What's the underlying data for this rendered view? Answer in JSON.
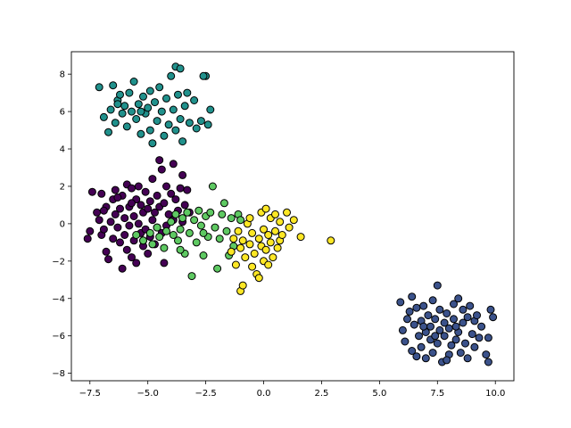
{
  "chart_data": {
    "type": "scatter",
    "title": "",
    "xlabel": "",
    "ylabel": "",
    "xlim": [
      -8.3,
      10.8
    ],
    "ylim": [
      -8.4,
      9.2
    ],
    "xticks": [
      -7.5,
      -5.0,
      -2.5,
      0.0,
      2.5,
      5.0,
      7.5,
      10.0
    ],
    "xtick_labels": [
      "−7.5",
      "−5.0",
      "−2.5",
      "0.0",
      "2.5",
      "5.0",
      "7.5",
      "10.0"
    ],
    "yticks": [
      -8,
      -6,
      -4,
      -2,
      0,
      2,
      4,
      6,
      8
    ],
    "ytick_labels": [
      "−8",
      "−6",
      "−4",
      "−2",
      "0",
      "2",
      "4",
      "6",
      "8"
    ],
    "grid": false,
    "marker_edge_color": "#000000",
    "series": [
      {
        "color": "#440154",
        "points": [
          [
            -7.6,
            -0.8
          ],
          [
            -7.5,
            -0.4
          ],
          [
            -7.4,
            1.7
          ],
          [
            -7.2,
            0.6
          ],
          [
            -7.1,
            0.2
          ],
          [
            -7.0,
            -0.6
          ],
          [
            -7.0,
            1.6
          ],
          [
            -6.9,
            -0.3
          ],
          [
            -6.8,
            -1.5
          ],
          [
            -6.8,
            0.9
          ],
          [
            -6.7,
            -1.9
          ],
          [
            -6.6,
            0.1
          ],
          [
            -6.5,
            1.3
          ],
          [
            -6.5,
            -0.8
          ],
          [
            -6.4,
            0.5
          ],
          [
            -6.4,
            1.8
          ],
          [
            -6.3,
            -0.2
          ],
          [
            -6.2,
            -1.0
          ],
          [
            -6.2,
            0.8
          ],
          [
            -6.1,
            -2.4
          ],
          [
            -6.1,
            1.5
          ],
          [
            -6.0,
            0.3
          ],
          [
            -6.0,
            -0.6
          ],
          [
            -5.9,
            2.1
          ],
          [
            -5.9,
            -1.4
          ],
          [
            -5.8,
            0.9
          ],
          [
            -5.8,
            -0.1
          ],
          [
            -5.7,
            1.9
          ],
          [
            -5.7,
            -1.8
          ],
          [
            -5.6,
            0.4
          ],
          [
            -5.6,
            -0.9
          ],
          [
            -5.5,
            1.3
          ],
          [
            -5.5,
            -2.1
          ],
          [
            -5.4,
            0.0
          ],
          [
            -5.4,
            2.0
          ],
          [
            -5.3,
            -0.5
          ],
          [
            -5.3,
            1.0
          ],
          [
            -5.2,
            -1.2
          ],
          [
            -5.2,
            0.6
          ],
          [
            -5.1,
            1.7
          ],
          [
            -5.1,
            -0.3
          ],
          [
            -5.0,
            0.8
          ],
          [
            -5.0,
            -1.6
          ],
          [
            -4.9,
            1.2
          ],
          [
            -4.9,
            -0.7
          ],
          [
            -4.8,
            0.2
          ],
          [
            -4.8,
            2.4
          ],
          [
            -4.7,
            -1.1
          ],
          [
            -4.7,
            0.6
          ],
          [
            -4.6,
            1.5
          ],
          [
            -4.6,
            -0.2
          ],
          [
            -4.5,
            3.4
          ],
          [
            -4.5,
            0.9
          ],
          [
            -4.4,
            2.9
          ],
          [
            -4.4,
            -0.5
          ],
          [
            -4.3,
            1.1
          ],
          [
            -4.2,
            2.0
          ],
          [
            -4.2,
            -0.1
          ],
          [
            -4.1,
            0.5
          ],
          [
            -4.0,
            1.6
          ],
          [
            -3.9,
            0.2
          ],
          [
            -3.9,
            3.2
          ],
          [
            -3.8,
            1.3
          ],
          [
            -3.7,
            0.7
          ],
          [
            -3.6,
            1.9
          ],
          [
            -3.5,
            0.1
          ],
          [
            -3.5,
            2.6
          ],
          [
            -3.4,
            1.0
          ],
          [
            -3.3,
            1.8
          ],
          [
            -3.2,
            0.6
          ],
          [
            -4.3,
            -2.1
          ],
          [
            -5.7,
            1.1
          ],
          [
            -6.3,
            1.4
          ],
          [
            -5.2,
            -0.9
          ],
          [
            -6.9,
            0.7
          ]
        ]
      },
      {
        "color": "#3b528b",
        "points": [
          [
            5.9,
            -4.2
          ],
          [
            6.0,
            -5.7
          ],
          [
            6.1,
            -6.3
          ],
          [
            6.2,
            -5.1
          ],
          [
            6.3,
            -4.7
          ],
          [
            6.4,
            -6.8
          ],
          [
            6.4,
            -3.9
          ],
          [
            6.5,
            -5.4
          ],
          [
            6.6,
            -7.1
          ],
          [
            6.6,
            -4.5
          ],
          [
            6.7,
            -6.0
          ],
          [
            6.8,
            -5.2
          ],
          [
            6.8,
            -6.6
          ],
          [
            6.9,
            -4.4
          ],
          [
            7.0,
            -5.8
          ],
          [
            7.0,
            -7.2
          ],
          [
            7.1,
            -4.9
          ],
          [
            7.2,
            -6.2
          ],
          [
            7.2,
            -5.5
          ],
          [
            7.3,
            -4.1
          ],
          [
            7.3,
            -6.9
          ],
          [
            7.4,
            -5.1
          ],
          [
            7.5,
            -3.3
          ],
          [
            7.5,
            -6.4
          ],
          [
            7.6,
            -5.7
          ],
          [
            7.6,
            -4.6
          ],
          [
            7.7,
            -7.4
          ],
          [
            7.8,
            -5.3
          ],
          [
            7.8,
            -6.0
          ],
          [
            7.9,
            -4.8
          ],
          [
            8.0,
            -7.0
          ],
          [
            8.0,
            -5.6
          ],
          [
            8.1,
            -6.5
          ],
          [
            8.2,
            -4.3
          ],
          [
            8.2,
            -5.1
          ],
          [
            8.3,
            -6.2
          ],
          [
            8.4,
            -5.8
          ],
          [
            8.4,
            -4.0
          ],
          [
            8.5,
            -6.9
          ],
          [
            8.6,
            -5.3
          ],
          [
            8.6,
            -4.6
          ],
          [
            8.7,
            -6.4
          ],
          [
            8.8,
            -5.0
          ],
          [
            8.8,
            -7.2
          ],
          [
            8.9,
            -4.4
          ],
          [
            9.0,
            -5.9
          ],
          [
            9.1,
            -6.6
          ],
          [
            9.1,
            -5.2
          ],
          [
            9.2,
            -4.9
          ],
          [
            9.3,
            -6.1
          ],
          [
            9.4,
            -5.5
          ],
          [
            9.6,
            -7.0
          ],
          [
            9.7,
            -6.1
          ],
          [
            9.8,
            -4.6
          ],
          [
            9.9,
            -5.0
          ],
          [
            9.7,
            -7.4
          ],
          [
            7.4,
            -6.0
          ],
          [
            7.9,
            -7.3
          ],
          [
            6.9,
            -5.5
          ],
          [
            8.3,
            -5.5
          ]
        ]
      },
      {
        "color": "#21918c",
        "points": [
          [
            -7.1,
            7.3
          ],
          [
            -6.9,
            5.7
          ],
          [
            -6.7,
            4.9
          ],
          [
            -6.6,
            6.1
          ],
          [
            -6.5,
            7.4
          ],
          [
            -6.4,
            5.4
          ],
          [
            -6.3,
            6.6
          ],
          [
            -6.2,
            6.9
          ],
          [
            -6.1,
            5.9
          ],
          [
            -6.0,
            6.3
          ],
          [
            -5.9,
            5.2
          ],
          [
            -5.8,
            7.0
          ],
          [
            -5.7,
            6.0
          ],
          [
            -5.6,
            7.6
          ],
          [
            -5.5,
            5.6
          ],
          [
            -5.4,
            6.4
          ],
          [
            -5.3,
            4.8
          ],
          [
            -5.2,
            6.8
          ],
          [
            -5.1,
            5.9
          ],
          [
            -5.0,
            6.2
          ],
          [
            -4.9,
            5.0
          ],
          [
            -4.9,
            7.1
          ],
          [
            -4.8,
            4.3
          ],
          [
            -4.7,
            6.5
          ],
          [
            -4.6,
            5.5
          ],
          [
            -4.5,
            7.3
          ],
          [
            -4.4,
            6.0
          ],
          [
            -4.3,
            4.7
          ],
          [
            -4.2,
            6.7
          ],
          [
            -4.1,
            5.3
          ],
          [
            -4.0,
            7.9
          ],
          [
            -3.9,
            6.1
          ],
          [
            -3.8,
            8.4
          ],
          [
            -3.8,
            5.0
          ],
          [
            -3.7,
            6.9
          ],
          [
            -3.6,
            5.6
          ],
          [
            -3.5,
            4.4
          ],
          [
            -3.4,
            6.3
          ],
          [
            -3.3,
            7.0
          ],
          [
            -3.2,
            5.4
          ],
          [
            -3.0,
            6.6
          ],
          [
            -2.9,
            5.1
          ],
          [
            -2.7,
            5.5
          ],
          [
            -2.5,
            7.9
          ],
          [
            -2.4,
            5.3
          ],
          [
            -2.3,
            6.1
          ],
          [
            -3.6,
            8.3
          ],
          [
            -2.6,
            7.9
          ],
          [
            -5.3,
            6.0
          ],
          [
            -6.3,
            6.4
          ]
        ]
      },
      {
        "color": "#5ec962",
        "points": [
          [
            -5.5,
            -0.6
          ],
          [
            -5.2,
            -0.9
          ],
          [
            -4.9,
            -0.5
          ],
          [
            -4.8,
            -1.1
          ],
          [
            -4.6,
            -0.2
          ],
          [
            -4.5,
            -0.7
          ],
          [
            -4.3,
            -1.3
          ],
          [
            -4.2,
            -0.4
          ],
          [
            -4.0,
            0.1
          ],
          [
            -3.9,
            -0.6
          ],
          [
            -3.8,
            0.5
          ],
          [
            -3.7,
            -0.9
          ],
          [
            -3.6,
            -0.3
          ],
          [
            -3.5,
            0.3
          ],
          [
            -3.4,
            -1.6
          ],
          [
            -3.3,
            0.6
          ],
          [
            -3.2,
            -0.5
          ],
          [
            -3.1,
            -2.8
          ],
          [
            -3.0,
            0.2
          ],
          [
            -2.9,
            -1.0
          ],
          [
            -2.8,
            0.7
          ],
          [
            -2.7,
            -0.1
          ],
          [
            -2.6,
            -1.7
          ],
          [
            -2.5,
            0.4
          ],
          [
            -2.4,
            -0.7
          ],
          [
            -2.3,
            0.6
          ],
          [
            -2.2,
            2.0
          ],
          [
            -2.1,
            -0.2
          ],
          [
            -2.0,
            -2.4
          ],
          [
            -1.9,
            -0.8
          ],
          [
            -1.8,
            0.5
          ],
          [
            -1.7,
            1.1
          ],
          [
            -1.6,
            -0.4
          ],
          [
            -1.5,
            -1.7
          ],
          [
            -1.4,
            0.3
          ],
          [
            -1.3,
            -1.2
          ],
          [
            -1.1,
            0.5
          ],
          [
            -1.0,
            0.2
          ],
          [
            -2.6,
            -0.5
          ],
          [
            -3.6,
            -1.4
          ]
        ]
      },
      {
        "color": "#fde725",
        "points": [
          [
            -1.4,
            -1.5
          ],
          [
            -1.3,
            -0.8
          ],
          [
            -1.2,
            -2.2
          ],
          [
            -1.1,
            -0.4
          ],
          [
            -1.0,
            -1.3
          ],
          [
            -1.0,
            -3.6
          ],
          [
            -0.9,
            -0.9
          ],
          [
            -0.9,
            -3.3
          ],
          [
            -0.8,
            -1.8
          ],
          [
            -0.7,
            0.0
          ],
          [
            -0.6,
            -1.1
          ],
          [
            -0.5,
            -2.3
          ],
          [
            -0.5,
            -0.5
          ],
          [
            -0.4,
            -1.6
          ],
          [
            -0.3,
            -2.7
          ],
          [
            -0.2,
            -0.8
          ],
          [
            -0.1,
            -1.2
          ],
          [
            -0.1,
            0.6
          ],
          [
            0.0,
            -2.0
          ],
          [
            0.0,
            -0.3
          ],
          [
            0.1,
            -1.4
          ],
          [
            0.1,
            0.8
          ],
          [
            0.2,
            -0.6
          ],
          [
            0.2,
            -2.2
          ],
          [
            0.3,
            0.3
          ],
          [
            0.3,
            -1.0
          ],
          [
            0.4,
            -1.8
          ],
          [
            0.5,
            0.5
          ],
          [
            0.5,
            -0.4
          ],
          [
            0.6,
            -1.3
          ],
          [
            0.7,
            0.1
          ],
          [
            0.7,
            -0.9
          ],
          [
            0.8,
            -0.6
          ],
          [
            1.0,
            0.6
          ],
          [
            1.1,
            -0.2
          ],
          [
            1.3,
            0.2
          ],
          [
            1.6,
            -0.7
          ],
          [
            2.9,
            -0.9
          ],
          [
            -0.6,
            0.3
          ],
          [
            -0.2,
            -2.9
          ]
        ]
      }
    ]
  }
}
